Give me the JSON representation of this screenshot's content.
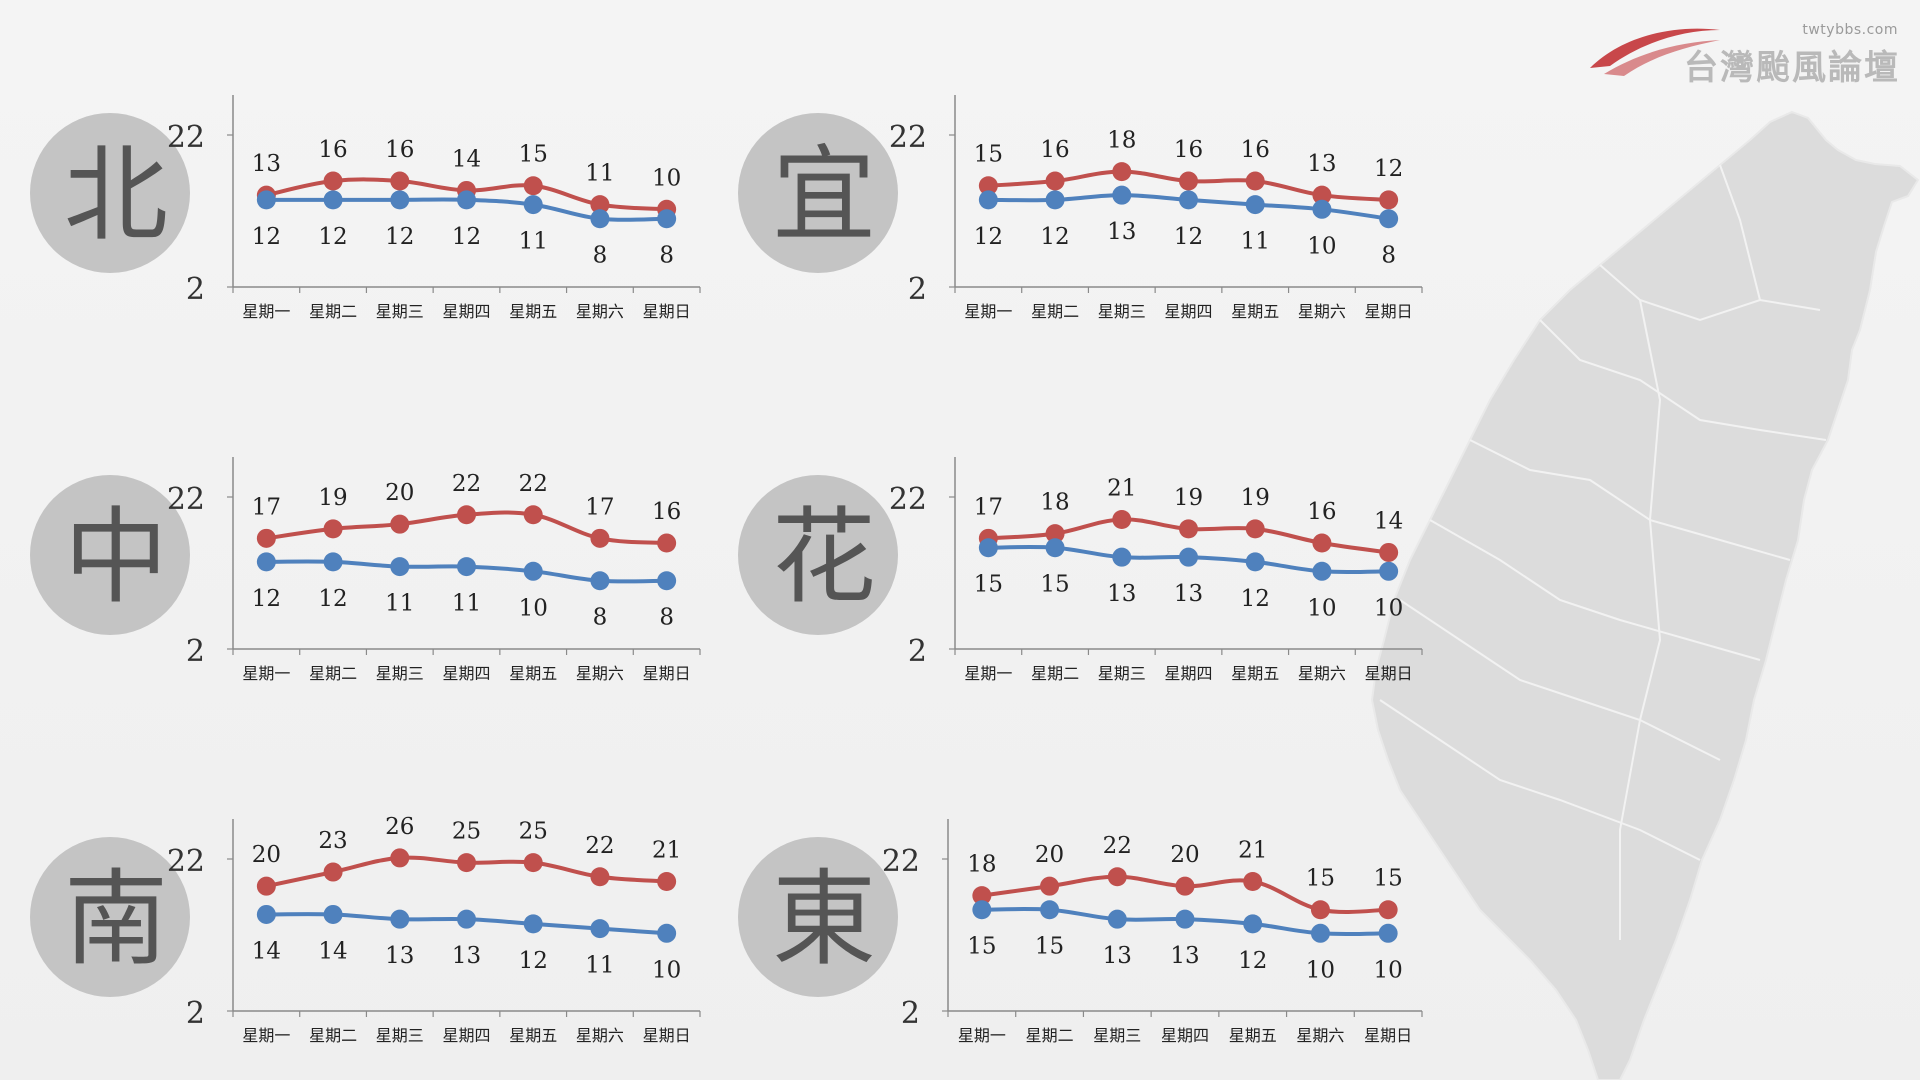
{
  "brand": {
    "url": "twtybbs.com",
    "name": "台灣颱風論壇"
  },
  "colors": {
    "high": "#c0504d",
    "low": "#4f81bd",
    "badge": "#c4c4c4",
    "badge_text": "#555555",
    "map": "#dcdcdc"
  },
  "chart_data": [
    {
      "type": "line",
      "region": "北",
      "categories": [
        "星期一",
        "星期二",
        "星期三",
        "星期四",
        "星期五",
        "星期六",
        "星期日"
      ],
      "series": [
        {
          "values": [
            13,
            16,
            16,
            14,
            15,
            11,
            10
          ]
        },
        {
          "values": [
            12,
            12,
            12,
            12,
            11,
            8,
            8
          ]
        }
      ],
      "yticks": [
        "22",
        "2"
      ],
      "ylim": [
        2,
        27
      ]
    },
    {
      "type": "line",
      "region": "宜",
      "categories": [
        "星期一",
        "星期二",
        "星期三",
        "星期四",
        "星期五",
        "星期六",
        "星期日"
      ],
      "series": [
        {
          "values": [
            15,
            16,
            18,
            16,
            16,
            13,
            12
          ]
        },
        {
          "values": [
            12,
            12,
            13,
            12,
            11,
            10,
            8
          ]
        }
      ],
      "yticks": [
        "22",
        "2"
      ],
      "ylim": [
        2,
        27
      ]
    },
    {
      "type": "line",
      "region": "中",
      "categories": [
        "星期一",
        "星期二",
        "星期三",
        "星期四",
        "星期五",
        "星期六",
        "星期日"
      ],
      "series": [
        {
          "values": [
            17,
            19,
            20,
            22,
            22,
            17,
            16
          ]
        },
        {
          "values": [
            12,
            12,
            11,
            11,
            10,
            8,
            8
          ]
        }
      ],
      "yticks": [
        "22",
        "2"
      ],
      "ylim": [
        2,
        27
      ]
    },
    {
      "type": "line",
      "region": "花",
      "categories": [
        "星期一",
        "星期二",
        "星期三",
        "星期四",
        "星期五",
        "星期六",
        "星期日"
      ],
      "series": [
        {
          "values": [
            17,
            18,
            21,
            19,
            19,
            16,
            14
          ]
        },
        {
          "values": [
            15,
            15,
            13,
            13,
            12,
            10,
            10
          ]
        }
      ],
      "yticks": [
        "22",
        "2"
      ],
      "ylim": [
        2,
        27
      ]
    },
    {
      "type": "line",
      "region": "南",
      "categories": [
        "星期一",
        "星期二",
        "星期三",
        "星期四",
        "星期五",
        "星期六",
        "星期日"
      ],
      "series": [
        {
          "values": [
            20,
            23,
            26,
            25,
            25,
            22,
            21
          ]
        },
        {
          "values": [
            14,
            14,
            13,
            13,
            12,
            11,
            10
          ]
        }
      ],
      "yticks": [
        "22",
        "2"
      ],
      "ylim": [
        2,
        27
      ]
    },
    {
      "type": "line",
      "region": "東",
      "categories": [
        "星期一",
        "星期二",
        "星期三",
        "星期四",
        "星期五",
        "星期六",
        "星期日"
      ],
      "series": [
        {
          "values": [
            18,
            20,
            22,
            20,
            21,
            15,
            15
          ]
        },
        {
          "values": [
            15,
            15,
            13,
            13,
            12,
            10,
            10
          ]
        }
      ],
      "yticks": [
        "22",
        "2"
      ],
      "ylim": [
        2,
        27
      ]
    }
  ]
}
